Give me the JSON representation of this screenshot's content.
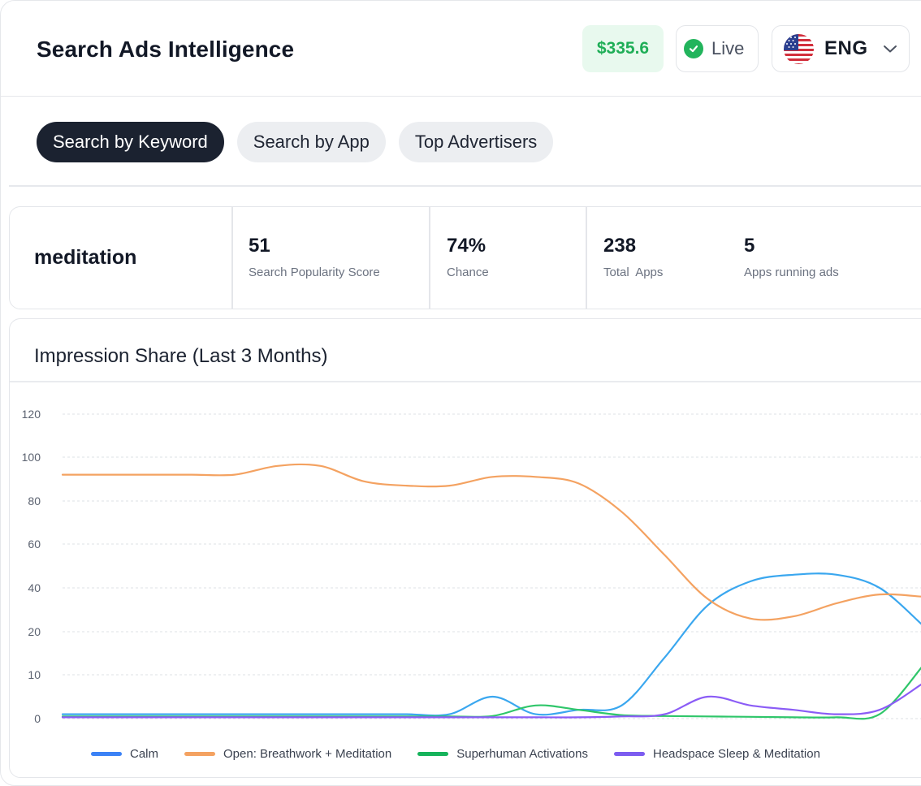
{
  "header": {
    "title": "Search Ads Intelligence",
    "balance": "$335.6",
    "status": "Live",
    "language": "ENG"
  },
  "tabs": [
    {
      "label": "Search by Keyword",
      "active": true
    },
    {
      "label": "Search by App",
      "active": false
    },
    {
      "label": "Top Advertisers",
      "active": false
    }
  ],
  "keyword": {
    "term": "meditation",
    "stats": [
      {
        "value": "51",
        "label": "Search Popularity Score"
      },
      {
        "value": "74%",
        "label": "Chance"
      },
      {
        "value": "238",
        "label": "Total  Apps"
      },
      {
        "value": "5",
        "label": "Apps running ads"
      }
    ]
  },
  "icons": {
    "status": "check-circle-icon",
    "flag": "us-flag-icon",
    "dropdown": "chevron-down-icon"
  },
  "colors": {
    "balance": "#1fae57",
    "live": "#22b45c",
    "tab_active": "#1b2230"
  },
  "chart_data": {
    "type": "line",
    "title": "Impression Share (Last 3 Months)",
    "xlabel": "",
    "ylabel": "",
    "yticks": [
      0,
      10,
      20,
      40,
      60,
      80,
      100,
      120
    ],
    "grid": true,
    "legend": "bottom",
    "series": [
      {
        "name": "Calm",
        "color": "#3aa7ef",
        "legend_color": "#3b82f6",
        "values": [
          1,
          1,
          1,
          1,
          1,
          1,
          1,
          1,
          1,
          1,
          5,
          1,
          2,
          3,
          14,
          32,
          43,
          46,
          46,
          40,
          23
        ]
      },
      {
        "name": "Open: Breathwork + Meditation",
        "color": "#f4a261",
        "legend_color": "#f4a261",
        "values": [
          92,
          92,
          92,
          92,
          92,
          96,
          96,
          89,
          87,
          87,
          91,
          91,
          88,
          75,
          55,
          35,
          26,
          27,
          33,
          37,
          36
        ]
      },
      {
        "name": "Superhuman Activations",
        "color": "#2fc66a",
        "legend_color": "#16b35b",
        "values": [
          0.5,
          0.5,
          0.5,
          0.5,
          0.5,
          0.5,
          0.5,
          0.5,
          0.5,
          0.5,
          0.6,
          3,
          2,
          0.8,
          0.6,
          0.5,
          0.4,
          0.3,
          0.3,
          1,
          12
        ]
      },
      {
        "name": "Headspace Sleep & Meditation",
        "color": "#8b5cf6",
        "legend_color": "#7c5cf0",
        "values": [
          0.3,
          0.3,
          0.3,
          0.3,
          0.3,
          0.3,
          0.3,
          0.3,
          0.3,
          0.3,
          0.3,
          0.3,
          0.3,
          0.5,
          1,
          5,
          3,
          2,
          1,
          2,
          8
        ]
      }
    ]
  }
}
